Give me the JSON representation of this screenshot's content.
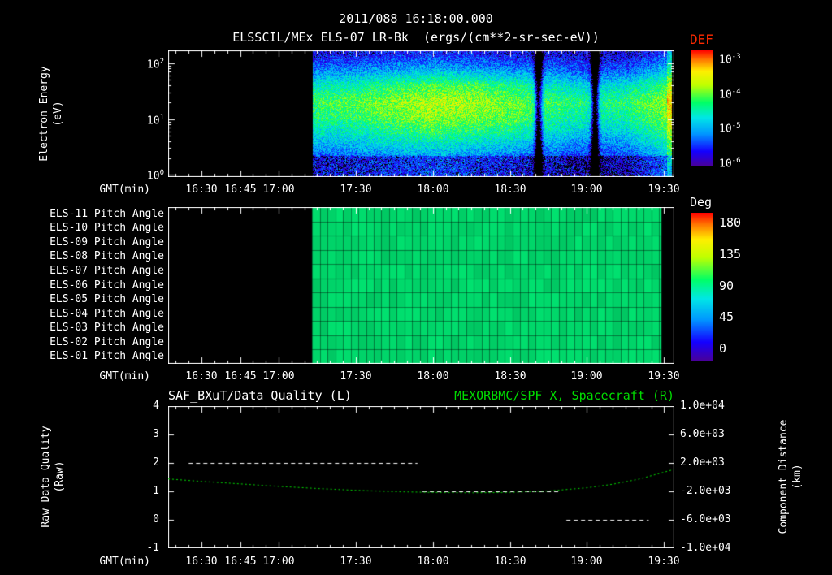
{
  "title": {
    "line1": "2011/088 16:18:00.000",
    "line2": "ELSSCIL/MEx ELS-07 LR-Bk  (ergs/(cm**2-sr-sec-eV))"
  },
  "time_axis": {
    "label": "GMT(min)",
    "start": "16:17",
    "end": "19:34",
    "ticks": [
      "16:30",
      "16:45",
      "17:00",
      "17:30",
      "18:00",
      "18:30",
      "19:00",
      "19:30"
    ],
    "minor_tick_minutes": 5
  },
  "colors": {
    "background": "#000000",
    "text": "#ffffff",
    "accent_green": "#00dd00",
    "def_label_red": "#ff2a00",
    "colormap": [
      [
        0,
        "#4b0096"
      ],
      [
        0.13,
        "#1400ff"
      ],
      [
        0.28,
        "#0096ff"
      ],
      [
        0.42,
        "#00e6e6"
      ],
      [
        0.55,
        "#00ff66"
      ],
      [
        0.7,
        "#bfff00"
      ],
      [
        0.82,
        "#ffee00"
      ],
      [
        0.92,
        "#ff7700"
      ],
      [
        1,
        "#ff0000"
      ]
    ]
  },
  "chart_data": [
    {
      "type": "heatmap",
      "name": "electron-energy-spectrogram",
      "title": "ELSSCIL/MEx ELS-07 LR-Bk (ergs/(cm**2-sr-sec-eV))",
      "y_label_lines": [
        "Electron Energy",
        "(eV)"
      ],
      "y_scale": "log",
      "log_e_top": 2.23,
      "log_e_bottom": -0.04,
      "y_ticks": [
        {
          "base": "10",
          "exp": "2"
        },
        {
          "base": "10",
          "exp": "1"
        },
        {
          "base": "10",
          "exp": "0"
        }
      ],
      "data_start": "17:13",
      "data_end": "19:33",
      "edge_brighten_time": "19:31",
      "dropout_times": [
        "18:41",
        "19:03"
      ],
      "times": [
        "17:15",
        "17:30",
        "17:45",
        "18:00",
        "18:15",
        "18:30",
        "18:45",
        "19:00",
        "19:15",
        "19:30"
      ],
      "energies_ev": [
        2,
        5,
        10,
        20,
        40,
        80,
        150
      ],
      "log10_def": [
        [
          -5.6,
          -5.5,
          -5.4,
          -5.3,
          -5.4,
          -5.5,
          -5.6,
          -5.8,
          -5.7,
          -5.2
        ],
        [
          -5.0,
          -4.9,
          -4.7,
          -4.6,
          -4.7,
          -4.8,
          -5.0,
          -5.2,
          -5.1,
          -4.6
        ],
        [
          -4.6,
          -4.5,
          -4.3,
          -4.1,
          -4.2,
          -4.3,
          -4.6,
          -4.8,
          -4.7,
          -4.3
        ],
        [
          -4.4,
          -4.3,
          -4.1,
          -3.95,
          -4.0,
          -4.2,
          -4.4,
          -4.6,
          -4.5,
          -4.1
        ],
        [
          -4.8,
          -4.7,
          -4.5,
          -4.35,
          -4.4,
          -4.6,
          -4.8,
          -5.0,
          -4.9,
          -4.5
        ],
        [
          -5.5,
          -5.4,
          -5.3,
          -5.2,
          -5.3,
          -5.4,
          -5.5,
          -5.7,
          -5.6,
          -5.2
        ],
        [
          -5.9,
          -5.9,
          -5.8,
          -5.8,
          -5.8,
          -5.9,
          -5.9,
          -6.0,
          -6.0,
          -5.7
        ]
      ],
      "colorbar": {
        "label": "DEF",
        "log_min": -6.3,
        "log_max": -3,
        "ticks": [
          {
            "base": "10",
            "exp": "-3"
          },
          {
            "base": "10",
            "exp": "-4"
          },
          {
            "base": "10",
            "exp": "-5"
          },
          {
            "base": "10",
            "exp": "-6"
          }
        ]
      }
    },
    {
      "type": "heatmap",
      "name": "pitch-angle-panel",
      "units": "Deg",
      "rows": [
        "ELS-11 Pitch Angle",
        "ELS-10 Pitch Angle",
        "ELS-09 Pitch Angle",
        "ELS-08 Pitch Angle",
        "ELS-07 Pitch Angle",
        "ELS-06 Pitch Angle",
        "ELS-05 Pitch Angle",
        "ELS-04 Pitch Angle",
        "ELS-03 Pitch Angle",
        "ELS-02 Pitch Angle",
        "ELS-01 Pitch Angle"
      ],
      "value_deg": 95,
      "data_start": "17:13",
      "data_end": "19:29",
      "grid_minutes": 3,
      "deg_min": 0,
      "deg_max": 180,
      "colorbar_ticks": [
        "180",
        "135",
        "90",
        "45",
        "0"
      ]
    },
    {
      "type": "line",
      "name": "quality-and-distance",
      "left_title": "SAF_BXuT/Data Quality (L)",
      "right_title": "MEXORBMC/SPF X, Spacecraft (R)",
      "left_axis": {
        "label_lines": [
          "Raw Data Quality",
          "(Raw)"
        ],
        "min": -1,
        "max": 4,
        "ticks": [
          "4",
          "3",
          "2",
          "1",
          "0",
          "-1"
        ]
      },
      "right_axis": {
        "label_lines": [
          "Component Distance",
          "(km)"
        ],
        "min": -10000,
        "max": 10000,
        "ticks": [
          "1.0e+04",
          "6.0e+03",
          "2.0e+03",
          "-2.0e+03",
          "-6.0e+03",
          "-1.0e+04"
        ]
      },
      "series": [
        {
          "name": "SAF_BXuT/Data Quality",
          "axis": "left",
          "color": "#ffffff",
          "style": "dashed",
          "segments": [
            {
              "start": "16:25",
              "end": "17:54",
              "value": 2
            },
            {
              "start": "17:56",
              "end": "18:50",
              "value": 1
            },
            {
              "start": "18:52",
              "end": "19:24",
              "value": 0
            }
          ]
        },
        {
          "name": "MEXORBMC/SPF X Spacecraft",
          "axis": "right",
          "color": "#00dd00",
          "style": "dotted",
          "points": [
            [
              "16:17",
              -250
            ],
            [
              "16:30",
              -600
            ],
            [
              "16:45",
              -950
            ],
            [
              "17:00",
              -1300
            ],
            [
              "17:15",
              -1600
            ],
            [
              "17:30",
              -1850
            ],
            [
              "17:45",
              -2050
            ],
            [
              "18:00",
              -2150
            ],
            [
              "18:15",
              -2200
            ],
            [
              "18:30",
              -2150
            ],
            [
              "18:45",
              -1950
            ],
            [
              "19:00",
              -1500
            ],
            [
              "19:10",
              -1000
            ],
            [
              "19:20",
              -300
            ],
            [
              "19:30",
              700
            ],
            [
              "19:34",
              1100
            ]
          ]
        }
      ]
    }
  ]
}
